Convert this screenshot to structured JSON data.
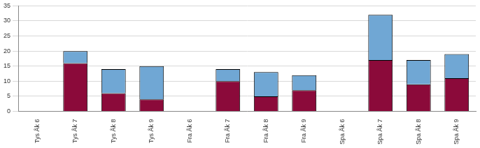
{
  "chart_data": {
    "type": "bar",
    "stacked": true,
    "grid": true,
    "categories": [
      "Tys Åk 6",
      "Tys Åk 7",
      "Tys Åk 8",
      "Tys Åk 9",
      "Fra Åk 6",
      "Fra Åk 7",
      "Fra Åk 8",
      "Fra Åk 9",
      "Spa Åk 6",
      "Spa Åk 7",
      "Spa Åk 8",
      "Spa Åk 9"
    ],
    "series": [
      {
        "color": "#8b0a3a",
        "values": [
          0,
          16,
          6,
          4,
          0,
          10,
          5,
          7,
          0,
          17,
          9,
          11
        ]
      },
      {
        "color": "#70a7d4",
        "values": [
          0,
          4,
          8,
          11,
          0,
          4,
          8,
          5,
          0,
          15,
          8,
          8
        ]
      }
    ],
    "ylim": [
      0,
      35
    ],
    "yticks": [
      0,
      5,
      10,
      15,
      20,
      25,
      30,
      35
    ]
  }
}
